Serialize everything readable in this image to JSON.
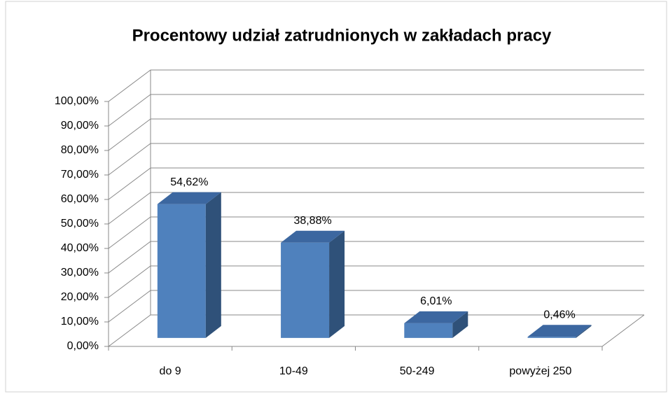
{
  "chart_data": {
    "type": "bar3d",
    "title": "Procentowy udział zatrudnionych w zakładach pracy",
    "categories": [
      "do 9",
      "10-49",
      "50-249",
      "powyżej 250"
    ],
    "values": [
      54.62,
      38.88,
      6.01,
      0.46
    ],
    "value_labels": [
      "54,62%",
      "38,88%",
      "6,01%",
      "0,46%"
    ],
    "color": "#4f81bd",
    "ylim": [
      0,
      100
    ],
    "yticks": [
      {
        "value": 0,
        "label": "0,00%"
      },
      {
        "value": 10,
        "label": "10,00%"
      },
      {
        "value": 20,
        "label": "20,00%"
      },
      {
        "value": 30,
        "label": "30,00%"
      },
      {
        "value": 40,
        "label": "40,00%"
      },
      {
        "value": 50,
        "label": "50,00%"
      },
      {
        "value": 60,
        "label": "60,00%"
      },
      {
        "value": 70,
        "label": "70,00%"
      },
      {
        "value": 80,
        "label": "80,00%"
      },
      {
        "value": 90,
        "label": "90,00%"
      },
      {
        "value": 100,
        "label": "100,00%"
      }
    ],
    "grid": true
  }
}
